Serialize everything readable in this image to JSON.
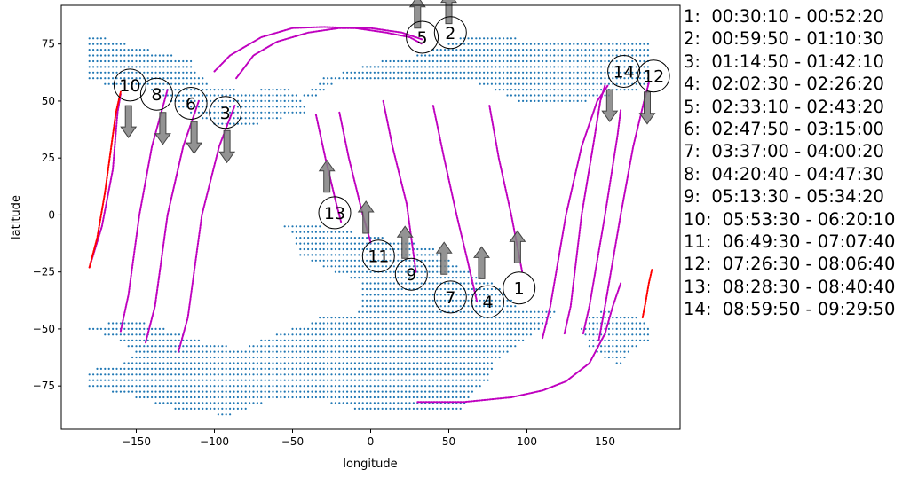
{
  "chart_data": {
    "type": "scatter",
    "xlabel": "longitude",
    "ylabel": "latitude",
    "xlim": [
      -198,
      198
    ],
    "ylim": [
      -94,
      92
    ],
    "xticks": [
      -150,
      -100,
      -50,
      0,
      50,
      100,
      150
    ],
    "yticks": [
      -75,
      -50,
      -25,
      0,
      25,
      50,
      75
    ],
    "grid": false,
    "colors": {
      "land": "#1f77b4",
      "track": "#bf00bf",
      "red_track": "#ff0000",
      "arrow": "#808080"
    },
    "land_regions": [
      {
        "name": "north_west",
        "polygon": [
          [
            -180,
            78
          ],
          [
            -170,
            78
          ],
          [
            -150,
            74
          ],
          [
            -130,
            71
          ],
          [
            -115,
            68
          ],
          [
            -110,
            62
          ],
          [
            -100,
            56
          ],
          [
            -85,
            55
          ],
          [
            -70,
            55
          ],
          [
            -55,
            57
          ],
          [
            -45,
            52
          ],
          [
            -40,
            45
          ],
          [
            -70,
            40
          ],
          [
            -80,
            39
          ],
          [
            -100,
            40
          ],
          [
            -120,
            46
          ],
          [
            -140,
            55
          ],
          [
            -160,
            57
          ],
          [
            -180,
            58
          ]
        ]
      },
      {
        "name": "north_east",
        "polygon": [
          [
            -45,
            52
          ],
          [
            -30,
            60
          ],
          [
            -10,
            64
          ],
          [
            10,
            68
          ],
          [
            30,
            70
          ],
          [
            50,
            75
          ],
          [
            60,
            79
          ],
          [
            80,
            78
          ],
          [
            110,
            77
          ],
          [
            130,
            77
          ],
          [
            180,
            77
          ],
          [
            180,
            56
          ],
          [
            150,
            52
          ],
          [
            140,
            50
          ],
          [
            120,
            48
          ],
          [
            100,
            48
          ],
          [
            80,
            55
          ],
          [
            60,
            60
          ],
          [
            40,
            60
          ],
          [
            20,
            60
          ],
          [
            0,
            58
          ],
          [
            -10,
            58
          ],
          [
            -20,
            60
          ],
          [
            -35,
            52
          ]
        ]
      },
      {
        "name": "south",
        "polygon": [
          [
            -55,
            -5
          ],
          [
            -40,
            -4
          ],
          [
            -20,
            -6
          ],
          [
            0,
            -9
          ],
          [
            20,
            -11
          ],
          [
            40,
            -14
          ],
          [
            55,
            -22
          ],
          [
            80,
            -30
          ],
          [
            95,
            -40
          ],
          [
            120,
            -40
          ],
          [
            115,
            -47
          ],
          [
            100,
            -55
          ],
          [
            80,
            -65
          ],
          [
            75,
            -73
          ],
          [
            65,
            -78
          ],
          [
            60,
            -85
          ],
          [
            20,
            -85
          ],
          [
            -10,
            -85
          ],
          [
            -30,
            -82
          ],
          [
            -60,
            -80
          ],
          [
            -90,
            -88
          ],
          [
            -120,
            -86
          ],
          [
            -140,
            -82
          ],
          [
            -160,
            -78
          ],
          [
            -180,
            -76
          ],
          [
            -180,
            -68
          ],
          [
            -160,
            -66
          ],
          [
            -150,
            -60
          ],
          [
            -160,
            -55
          ],
          [
            -180,
            -50
          ],
          [
            -165,
            -47
          ],
          [
            -145,
            -47
          ],
          [
            -115,
            -53
          ],
          [
            -100,
            -57
          ],
          [
            -80,
            -58
          ],
          [
            -60,
            -52
          ],
          [
            -40,
            -48
          ],
          [
            -30,
            -44
          ],
          [
            -20,
            -44
          ],
          [
            -8,
            -44
          ],
          [
            -5,
            -30
          ],
          [
            -20,
            -26
          ],
          [
            -30,
            -23
          ],
          [
            -45,
            -18
          ],
          [
            -50,
            -8
          ]
        ]
      },
      {
        "name": "south_east",
        "polygon": [
          [
            140,
            -44
          ],
          [
            150,
            -42
          ],
          [
            170,
            -44
          ],
          [
            178,
            -48
          ],
          [
            180,
            -56
          ],
          [
            170,
            -58
          ],
          [
            160,
            -66
          ],
          [
            150,
            -63
          ],
          [
            140,
            -58
          ],
          [
            135,
            -50
          ]
        ]
      }
    ],
    "series": [
      {
        "type": "line",
        "points": [
          [
            -180,
            -23
          ],
          [
            -172,
            -5
          ],
          [
            -165,
            20
          ],
          [
            -162,
            45
          ],
          [
            -160,
            53
          ]
        ]
      },
      {
        "type": "line",
        "points": [
          [
            -160,
            -51
          ],
          [
            -155,
            -35
          ],
          [
            -148,
            0
          ],
          [
            -140,
            30
          ],
          [
            -130,
            55
          ]
        ]
      },
      {
        "type": "line",
        "points": [
          [
            -144,
            -56
          ],
          [
            -138,
            -40
          ],
          [
            -130,
            0
          ],
          [
            -120,
            30
          ],
          [
            -110,
            50
          ]
        ]
      },
      {
        "type": "line",
        "points": [
          [
            -123,
            -60
          ],
          [
            -117,
            -45
          ],
          [
            -108,
            0
          ],
          [
            -97,
            30
          ],
          [
            -87,
            48
          ]
        ]
      },
      {
        "type": "line",
        "points": [
          [
            -35,
            44
          ],
          [
            -29,
            25
          ],
          [
            -22,
            5
          ],
          [
            -19,
            -3
          ]
        ]
      },
      {
        "type": "line",
        "points": [
          [
            -20,
            45
          ],
          [
            -14,
            25
          ],
          [
            -5,
            0
          ],
          [
            0,
            -12
          ]
        ]
      },
      {
        "type": "line",
        "points": [
          [
            8,
            50
          ],
          [
            14,
            30
          ],
          [
            23,
            5
          ],
          [
            29,
            -25
          ]
        ]
      },
      {
        "type": "line",
        "points": [
          [
            40,
            48
          ],
          [
            47,
            25
          ],
          [
            55,
            0
          ],
          [
            62,
            -20
          ],
          [
            68,
            -38
          ]
        ]
      },
      {
        "type": "line",
        "points": [
          [
            76,
            48
          ],
          [
            82,
            25
          ],
          [
            90,
            0
          ],
          [
            97,
            -25
          ]
        ]
      },
      {
        "type": "line",
        "points": [
          [
            110,
            -54
          ],
          [
            115,
            -40
          ],
          [
            125,
            0
          ],
          [
            135,
            30
          ],
          [
            145,
            50
          ],
          [
            152,
            57
          ]
        ]
      },
      {
        "type": "line",
        "points": [
          [
            136,
            -52
          ],
          [
            140,
            -40
          ],
          [
            150,
            0
          ],
          [
            158,
            35
          ],
          [
            160,
            46
          ]
        ]
      },
      {
        "type": "line",
        "points": [
          [
            124,
            -52
          ],
          [
            128,
            -40
          ],
          [
            135,
            0
          ],
          [
            143,
            33
          ],
          [
            147,
            50
          ],
          [
            150,
            57
          ]
        ]
      },
      {
        "type": "line",
        "points": [
          [
            146,
            -55
          ],
          [
            150,
            -40
          ],
          [
            160,
            0
          ],
          [
            168,
            30
          ],
          [
            175,
            50
          ],
          [
            178,
            58
          ]
        ]
      },
      {
        "type": "line",
        "points": [
          [
            -100,
            63
          ],
          [
            -90,
            70
          ],
          [
            -70,
            78
          ],
          [
            -50,
            82
          ],
          [
            -30,
            82.5
          ],
          [
            -10,
            82
          ],
          [
            10,
            80
          ],
          [
            25,
            78
          ],
          [
            33,
            75
          ]
        ]
      },
      {
        "type": "line",
        "points": [
          [
            -86,
            60
          ],
          [
            -75,
            70
          ],
          [
            -60,
            76
          ],
          [
            -40,
            80
          ],
          [
            -20,
            82
          ],
          [
            0,
            82
          ],
          [
            20,
            80
          ],
          [
            33,
            77
          ]
        ]
      },
      {
        "type": "line",
        "points": [
          [
            30,
            -82
          ],
          [
            60,
            -82
          ],
          [
            90,
            -80
          ],
          [
            110,
            -77
          ],
          [
            125,
            -73
          ],
          [
            140,
            -65
          ],
          [
            150,
            -52
          ],
          [
            155,
            -40
          ],
          [
            160,
            -30
          ]
        ]
      }
    ],
    "red_series": [
      {
        "type": "line",
        "points": [
          [
            -180,
            -23
          ],
          [
            -175,
            -10
          ],
          [
            -170,
            10
          ],
          [
            -166,
            30
          ],
          [
            -163,
            45
          ],
          [
            -160,
            54
          ]
        ]
      },
      {
        "type": "line",
        "points": [
          [
            174,
            -45
          ],
          [
            176,
            -38
          ],
          [
            178,
            -30
          ],
          [
            180,
            -24
          ]
        ]
      }
    ],
    "pass_labels": [
      {
        "label": "1",
        "x": 95,
        "y": -32
      },
      {
        "label": "2",
        "x": 51,
        "y": 80
      },
      {
        "label": "3",
        "x": -93,
        "y": 45
      },
      {
        "label": "4",
        "x": 75,
        "y": -38
      },
      {
        "label": "5",
        "x": 33,
        "y": 78
      },
      {
        "label": "6",
        "x": -115,
        "y": 49
      },
      {
        "label": "7",
        "x": 51,
        "y": -36
      },
      {
        "label": "8",
        "x": -137,
        "y": 53
      },
      {
        "label": "9",
        "x": 26,
        "y": -26
      },
      {
        "label": "10",
        "x": -154,
        "y": 57
      },
      {
        "label": "11",
        "x": 5,
        "y": -18
      },
      {
        "label": "12",
        "x": 181,
        "y": 61
      },
      {
        "label": "13",
        "x": -23,
        "y": 1
      },
      {
        "label": "14",
        "x": 162,
        "y": 63
      }
    ],
    "arrows": [
      {
        "x": -155,
        "y": 48,
        "dir": "down"
      },
      {
        "x": -133,
        "y": 45,
        "dir": "down"
      },
      {
        "x": -113,
        "y": 41,
        "dir": "down"
      },
      {
        "x": -92,
        "y": 37,
        "dir": "down"
      },
      {
        "x": 153,
        "y": 55,
        "dir": "down"
      },
      {
        "x": 177,
        "y": 54,
        "dir": "down"
      },
      {
        "x": 30,
        "y": 82,
        "dir": "up"
      },
      {
        "x": 50,
        "y": 84,
        "dir": "up"
      },
      {
        "x": -28,
        "y": 10,
        "dir": "up"
      },
      {
        "x": -3,
        "y": -8,
        "dir": "up"
      },
      {
        "x": 22,
        "y": -19,
        "dir": "up"
      },
      {
        "x": 47,
        "y": -26,
        "dir": "up"
      },
      {
        "x": 71,
        "y": -28,
        "dir": "up"
      },
      {
        "x": 94,
        "y": -21,
        "dir": "up"
      }
    ],
    "legend": [
      "1:  00:30:10 - 00:52:20",
      "2:  00:59:50 - 01:10:30",
      "3:  01:14:50 - 01:42:10",
      "4:  02:02:30 - 02:26:20",
      "5:  02:33:10 - 02:43:20",
      "6:  02:47:50 - 03:15:00",
      "7:  03:37:00 - 04:00:20",
      "8:  04:20:40 - 04:47:30",
      "9:  05:13:30 - 05:34:20",
      "10:  05:53:30 - 06:20:10",
      "11:  06:49:30 - 07:07:40",
      "12:  07:26:30 - 08:06:40",
      "13:  08:28:30 - 08:40:40",
      "14:  08:59:50 - 09:29:50"
    ]
  }
}
